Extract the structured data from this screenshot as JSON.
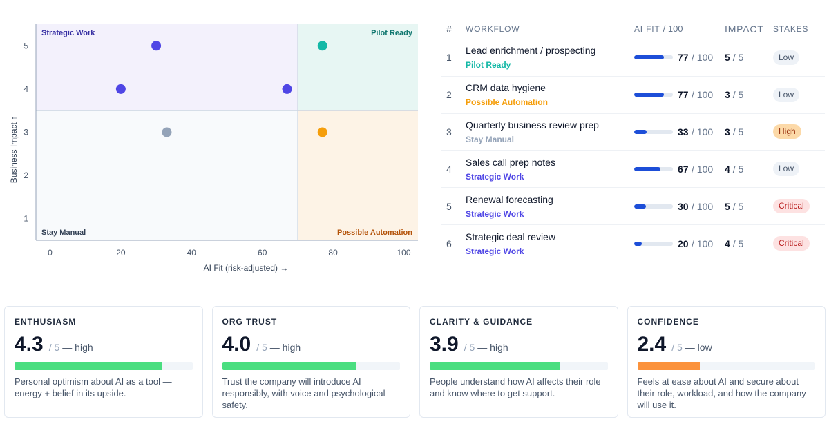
{
  "chart_data": {
    "type": "scatter",
    "xlabel": "AI Fit (risk-adjusted) →",
    "ylabel": "Business Impact ↑",
    "xlim": [
      -4,
      104
    ],
    "ylim": [
      0.5,
      5.5
    ],
    "x_ticks": [
      0,
      20,
      40,
      60,
      80,
      100
    ],
    "y_ticks": [
      1,
      2,
      3,
      4,
      5
    ],
    "divider_x": 70,
    "divider_y": 3.5,
    "quadrants": [
      {
        "name": "Strategic Work",
        "position": "top-left",
        "bg": "#f3f1fc",
        "label_color": "#3730a3"
      },
      {
        "name": "Pilot Ready",
        "position": "top-right",
        "bg": "#e7f6f3",
        "label_color": "#0f766e"
      },
      {
        "name": "Stay Manual",
        "position": "bottom-left",
        "bg": "#f8fafc",
        "label_color": "#334155"
      },
      {
        "name": "Possible Automation",
        "position": "bottom-right",
        "bg": "#fdf3e6",
        "label_color": "#b45309"
      }
    ],
    "points": [
      {
        "x": 77,
        "y": 5,
        "color": "#14b8a6"
      },
      {
        "x": 77,
        "y": 3,
        "color": "#f59e0b"
      },
      {
        "x": 33,
        "y": 3,
        "color": "#94a3b8"
      },
      {
        "x": 67,
        "y": 4,
        "color": "#4f46e5"
      },
      {
        "x": 30,
        "y": 5,
        "color": "#4f46e5"
      },
      {
        "x": 20,
        "y": 4,
        "color": "#4f46e5"
      }
    ]
  },
  "table": {
    "headers": {
      "num": "#",
      "workflow": "WORKFLOW",
      "ai_fit": "AI FIT",
      "ai_fit_unit": "/ 100",
      "impact": "IMPACT",
      "stakes": "STAKES"
    },
    "rows": [
      {
        "num": "1",
        "name": "Lead enrichment / prospecting",
        "category": "Pilot Ready",
        "category_color": "#14b8a6",
        "fit": 77,
        "fit_den": "/ 100",
        "impact": "5",
        "impact_den": "/ 5",
        "stakes": "Low",
        "stakes_bg": "#eef2f7",
        "stakes_color": "#475569"
      },
      {
        "num": "2",
        "name": "CRM data hygiene",
        "category": "Possible Automation",
        "category_color": "#f59e0b",
        "fit": 77,
        "fit_den": "/ 100",
        "impact": "3",
        "impact_den": "/ 5",
        "stakes": "Low",
        "stakes_bg": "#eef2f7",
        "stakes_color": "#475569"
      },
      {
        "num": "3",
        "name": "Quarterly business review prep",
        "category": "Stay Manual",
        "category_color": "#94a3b8",
        "fit": 33,
        "fit_den": "/ 100",
        "impact": "3",
        "impact_den": "/ 5",
        "stakes": "High",
        "stakes_bg": "#fcd9a8",
        "stakes_color": "#9a3412"
      },
      {
        "num": "4",
        "name": "Sales call prep notes",
        "category": "Strategic Work",
        "category_color": "#4f46e5",
        "fit": 67,
        "fit_den": "/ 100",
        "impact": "4",
        "impact_den": "/ 5",
        "stakes": "Low",
        "stakes_bg": "#eef2f7",
        "stakes_color": "#475569"
      },
      {
        "num": "5",
        "name": "Renewal forecasting",
        "category": "Strategic Work",
        "category_color": "#4f46e5",
        "fit": 30,
        "fit_den": "/ 100",
        "impact": "5",
        "impact_den": "/ 5",
        "stakes": "Critical",
        "stakes_bg": "#fde2e2",
        "stakes_color": "#b91c1c"
      },
      {
        "num": "6",
        "name": "Strategic deal review",
        "category": "Strategic Work",
        "category_color": "#4f46e5",
        "fit": 20,
        "fit_den": "/ 100",
        "impact": "4",
        "impact_den": "/ 5",
        "stakes": "Critical",
        "stakes_bg": "#fde2e2",
        "stakes_color": "#b91c1c"
      }
    ]
  },
  "cards": [
    {
      "title": "ENTHUSIASM",
      "score": "4.3",
      "den": "/ 5",
      "level": "— high",
      "fraction": 0.83,
      "bar_color": "#4ade80",
      "desc": "Personal optimism about AI as a tool — energy + belief in its upside."
    },
    {
      "title": "ORG TRUST",
      "score": "4.0",
      "den": "/ 5",
      "level": "— high",
      "fraction": 0.75,
      "bar_color": "#4ade80",
      "desc": "Trust the company will introduce AI responsibly, with voice and psychological safety."
    },
    {
      "title": "CLARITY & GUIDANCE",
      "score": "3.9",
      "den": "/ 5",
      "level": "— high",
      "fraction": 0.73,
      "bar_color": "#4ade80",
      "desc": "People understand how AI affects their role and know where to get support."
    },
    {
      "title": "CONFIDENCE",
      "score": "2.4",
      "den": "/ 5",
      "level": "— low",
      "fraction": 0.35,
      "bar_color": "#fb923c",
      "desc": "Feels at ease about AI and secure about their role, workload, and how the company will use it."
    }
  ]
}
